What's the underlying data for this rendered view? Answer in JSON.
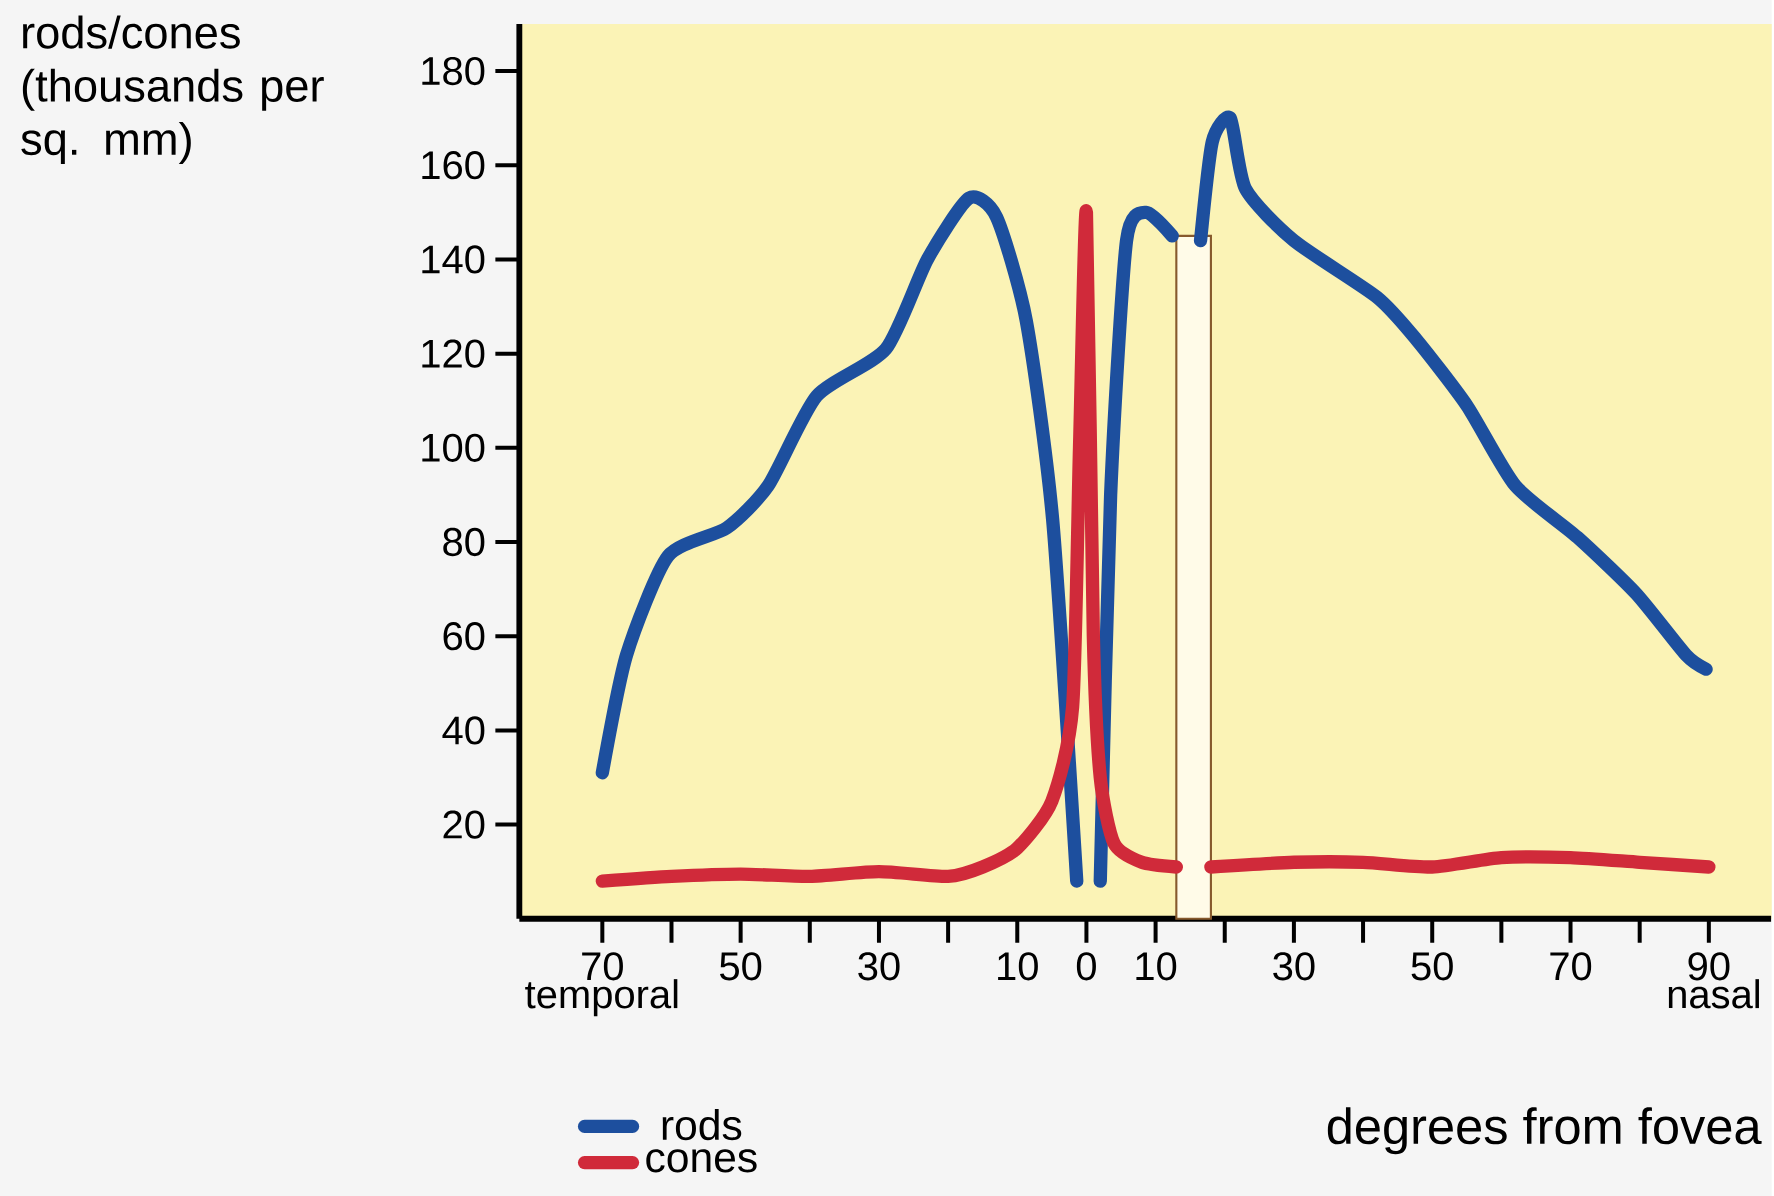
{
  "chart_data": {
    "type": "line",
    "ylabel": "rods/cones (thousands per sq. mm)",
    "xlabel": "degrees from fovea",
    "annotations": [
      "temporal",
      "nasal"
    ],
    "xlim": [
      -82,
      99
    ],
    "ylim": [
      0,
      190
    ],
    "xticks": [
      {
        "value": -70,
        "label": "70"
      },
      {
        "value": -60,
        "label": null
      },
      {
        "value": -50,
        "label": "50"
      },
      {
        "value": -40,
        "label": null
      },
      {
        "value": -30,
        "label": "30"
      },
      {
        "value": -20,
        "label": null
      },
      {
        "value": -10,
        "label": "10"
      },
      0,
      10,
      {
        "value": 20,
        "label": null
      },
      30,
      {
        "value": 40,
        "label": null
      },
      50,
      {
        "value": 60,
        "label": null
      },
      70,
      {
        "value": 80,
        "label": null
      },
      90
    ],
    "yticks": [
      20,
      40,
      60,
      80,
      100,
      120,
      140,
      160,
      180
    ],
    "bands": [
      {
        "axis": "x",
        "from": 13,
        "to": 18,
        "color": "#fffbe8"
      }
    ],
    "legend": "bottom left",
    "grid": false,
    "marker": "none",
    "line_style": "solid",
    "series": [
      {
        "name": "rods",
        "color": "#1d4f9e",
        "x": [
          -70,
          -66.5,
          -60.5,
          -52,
          -46,
          -39,
          -29,
          -23,
          -17,
          -13,
          -8.7,
          -4.9,
          -1.4,
          null,
          2,
          3.5,
          5.8,
          8.7,
          12.4,
          null,
          16.5,
          18.2,
          20.8,
          23,
          30,
          42,
          47.7,
          55,
          62,
          71,
          79.5,
          86.7,
          89.6
        ],
        "values": [
          31,
          56,
          77,
          83,
          92,
          111,
          121,
          140,
          153,
          149,
          127,
          85,
          8,
          null,
          8,
          90,
          144,
          150,
          145,
          null,
          144,
          165,
          170,
          155,
          144,
          132,
          123,
          109,
          92,
          81,
          69,
          56,
          53
        ]
      },
      {
        "name": "cones",
        "color": "#d02a3a",
        "x": [
          -70,
          -60,
          -50,
          -40,
          -30,
          -20,
          -15,
          -10,
          -5,
          -2,
          -1,
          0,
          1,
          2,
          4,
          8,
          13,
          null,
          18,
          30,
          40,
          50,
          60,
          70,
          80,
          90
        ],
        "values": [
          8,
          9,
          9.5,
          9,
          10,
          9,
          11,
          15,
          25,
          45,
          100,
          150,
          60,
          30,
          16,
          12,
          11,
          null,
          11,
          12,
          12,
          11,
          13,
          13,
          12,
          11
        ]
      }
    ]
  }
}
